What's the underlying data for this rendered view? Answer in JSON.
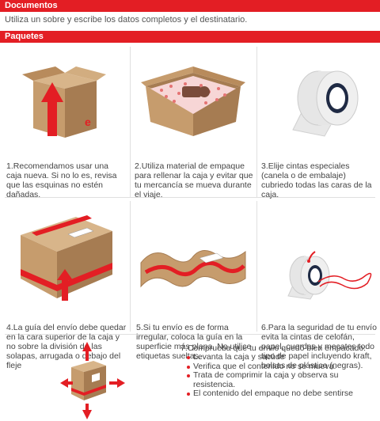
{
  "documentos": {
    "header": "Documentos",
    "text": "Utiliza un sobre y escribe los datos completos y el destinatario."
  },
  "paquetes": {
    "header": "Paquetes",
    "steps": [
      {
        "num": "1.",
        "text": "Recomendamos usar una caja nueva. Si no lo es, revisa que las esquinas no estén dañadas.",
        "icon": "box-arrow-up-icon"
      },
      {
        "num": "2.",
        "text": "Utiliza material de empaque para rellenar la caja y evitar que tu mercancía se mueva durante el viaje.",
        "icon": "box-filling-icon"
      },
      {
        "num": "3.",
        "text": "Elije cintas especiales (canela o de embalaje) cubriedo todas las caras de la caja.",
        "icon": "tape-roll-icon"
      },
      {
        "num": "4.",
        "text": "La guía del envío debe quedar en la cara superior de la caja y no sobre la división de las solapas, arrugada o debajo del fleje",
        "icon": "box-label-icon"
      },
      {
        "num": "5.",
        "text": "Si tu envío es de forma irregular, coloca la guía en la superficie más plana. No utilice etiquetas sueltas.",
        "icon": "irregular-package-icon"
      },
      {
        "num": "6.",
        "text": "Para la seguridad de tu envío evita la cintas de celofán, papel, cuerdas y mecates todo tipo de papel incluyendo kraft, bolsas de plástico (negras).",
        "icon": "tape-string-icon"
      }
    ],
    "step7": {
      "num": "7.",
      "title": "Comprueba que tu envío quedó bien empacado:",
      "bullets": [
        "Levanta la caja y sacúde",
        "Verifica que el contenido no se mueva.",
        "Trata de comprimir la caja y observa su resistencia.",
        "El contenido del empaque no debe sentirse"
      ],
      "icon": "box-arrows-icon"
    }
  },
  "colors": {
    "accent": "#e31e24",
    "box": "#c69c6d",
    "box_dark": "#a67c52"
  }
}
